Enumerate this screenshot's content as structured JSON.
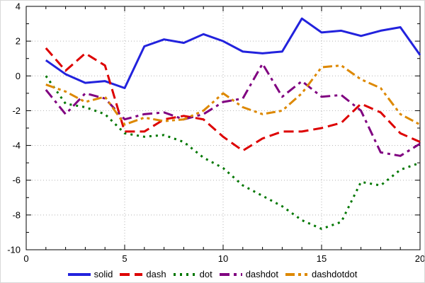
{
  "chart_data": {
    "type": "line",
    "x": [
      1,
      2,
      3,
      4,
      5,
      6,
      7,
      8,
      9,
      10,
      11,
      12,
      13,
      14,
      15,
      16,
      17,
      18,
      19,
      20
    ],
    "series": [
      {
        "name": "solid",
        "color": "#2222dd",
        "line_style": "solid",
        "values": [
          0.9,
          0.1,
          -0.4,
          -0.3,
          -0.7,
          1.7,
          2.1,
          1.9,
          2.4,
          2.0,
          1.4,
          1.3,
          1.4,
          3.3,
          2.5,
          2.6,
          2.3,
          2.6,
          2.8,
          1.2
        ]
      },
      {
        "name": "dash",
        "color": "#dd0000",
        "line_style": "dash",
        "values": [
          1.6,
          0.3,
          1.3,
          0.6,
          -3.2,
          -3.2,
          -2.5,
          -2.3,
          -2.5,
          -3.5,
          -4.3,
          -3.6,
          -3.2,
          -3.2,
          -3.0,
          -2.7,
          -1.6,
          -2.1,
          -3.3,
          -3.8
        ]
      },
      {
        "name": "dot",
        "color": "#007700",
        "line_style": "dot",
        "values": [
          0.0,
          -1.6,
          -1.8,
          -2.2,
          -3.3,
          -3.5,
          -3.4,
          -3.8,
          -4.7,
          -5.3,
          -6.3,
          -6.9,
          -7.5,
          -8.3,
          -8.8,
          -8.4,
          -6.1,
          -6.3,
          -5.4,
          -5.0
        ]
      },
      {
        "name": "dashdot",
        "color": "#800080",
        "line_style": "dashdot",
        "values": [
          -0.8,
          -2.2,
          -1.0,
          -1.3,
          -2.5,
          -2.2,
          -2.1,
          -2.5,
          -2.2,
          -1.5,
          -1.3,
          0.7,
          -1.2,
          -0.3,
          -1.2,
          -1.1,
          -2.0,
          -4.4,
          -4.6,
          -3.9
        ]
      },
      {
        "name": "dashdotdot",
        "color": "#dd8800",
        "line_style": "dashdotdot",
        "values": [
          -0.5,
          -0.9,
          -1.5,
          -1.2,
          -2.8,
          -2.4,
          -2.6,
          -2.5,
          -2.0,
          -1.0,
          -1.8,
          -2.2,
          -2.0,
          -1.0,
          0.5,
          0.6,
          -0.2,
          -0.7,
          -2.2,
          -2.8
        ]
      }
    ],
    "title": "",
    "xlabel": "",
    "ylabel": "",
    "xlim": [
      0,
      20
    ],
    "ylim": [
      -10,
      4
    ],
    "xticks": [
      0,
      5,
      10,
      15,
      20
    ],
    "yticks": [
      4,
      2,
      0,
      -2,
      -4,
      -6,
      -8,
      -10
    ],
    "x_minor_step": 1,
    "y_minor_step": 1,
    "grid": true,
    "grid_color": "#b4b4b4",
    "frame_color": "#000000",
    "text_color": "#000000",
    "legend_position": "bottom-center"
  }
}
